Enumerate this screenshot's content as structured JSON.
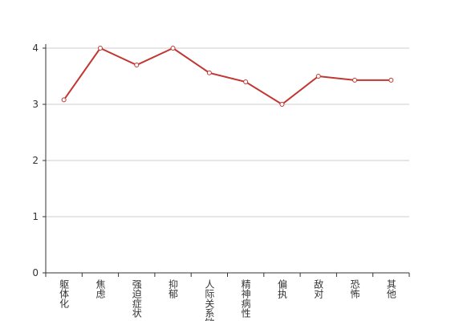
{
  "chart_data": {
    "type": "line",
    "categories": [
      "躯体化",
      "焦虑",
      "强迫症状",
      "抑郁",
      "人际关系敏感",
      "精神病性",
      "偏执",
      "敌对",
      "恐怖",
      "其他"
    ],
    "values": [
      3.08,
      4,
      3.7,
      4,
      3.56,
      3.4,
      3.0,
      3.5,
      3.43,
      3.43
    ],
    "color": "#c23531",
    "ylim": [
      0,
      4
    ],
    "yticks": [
      0,
      1,
      2,
      3,
      4
    ],
    "grid": true
  }
}
